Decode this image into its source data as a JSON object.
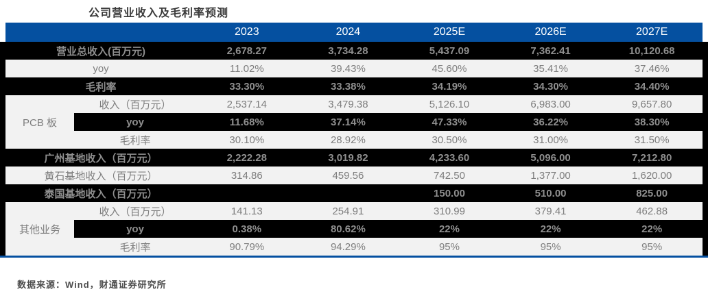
{
  "colors": {
    "header_blue": "#0550a0",
    "dark_row_bg": "#000000",
    "light_row_bg": "#f2f2f2",
    "dark_row_text": "#8f8f8f",
    "light_row_text": "#7d7d7d",
    "header_text": "#ffffff",
    "bottom_rule": "#0550a0"
  },
  "chart_data": {
    "type": "table",
    "title": "公司营业收入及毛利率预测",
    "columns": [
      "",
      "2023",
      "2024",
      "2025E",
      "2026E",
      "2027E"
    ],
    "rows": [
      {
        "group": "",
        "label": "营业总收入(百万元)",
        "values": [
          "2,678.27",
          "3,734.28",
          "5,437.09",
          "7,362.41",
          "10,120.68"
        ]
      },
      {
        "group": "",
        "label": "yoy",
        "values": [
          "11.02%",
          "39.43%",
          "45.60%",
          "35.41%",
          "37.46%"
        ]
      },
      {
        "group": "",
        "label": "毛利率",
        "values": [
          "33.30%",
          "33.38%",
          "34.19%",
          "34.30%",
          "34.40%"
        ]
      },
      {
        "group": "PCB 板",
        "label": "收入（百万元）",
        "values": [
          "2,537.14",
          "3,479.38",
          "5,126.10",
          "6,983.00",
          "9,657.80"
        ]
      },
      {
        "group": "PCB 板",
        "label": "yoy",
        "values": [
          "11.68%",
          "37.14%",
          "47.33%",
          "36.22%",
          "38.30%"
        ]
      },
      {
        "group": "PCB 板",
        "label": "毛利率",
        "values": [
          "30.10%",
          "28.92%",
          "30.50%",
          "31.00%",
          "31.50%"
        ]
      },
      {
        "group": "",
        "label": "广州基地收入（百万元）",
        "values": [
          "2,222.28",
          "3,019.82",
          "4,233.60",
          "5,096.00",
          "7,212.80"
        ]
      },
      {
        "group": "",
        "label": "黄石基地收入（百万元）",
        "values": [
          "314.86",
          "459.56",
          "742.50",
          "1,377.00",
          "1,620.00"
        ]
      },
      {
        "group": "",
        "label": "泰国基地收入（百万元）",
        "values": [
          "",
          "",
          "150.00",
          "510.00",
          "825.00"
        ]
      },
      {
        "group": "其他业务",
        "label": "收入（百万元）",
        "values": [
          "141.13",
          "254.91",
          "310.99",
          "379.41",
          "462.88"
        ]
      },
      {
        "group": "其他业务",
        "label": "yoy",
        "values": [
          "0.38%",
          "80.62%",
          "22%",
          "22%",
          "22%"
        ]
      },
      {
        "group": "其他业务",
        "label": "毛利率",
        "values": [
          "90.79%",
          "94.29%",
          "95%",
          "95%",
          "95%"
        ]
      }
    ],
    "source": "数据来源：Wind，财通证券研究所"
  }
}
